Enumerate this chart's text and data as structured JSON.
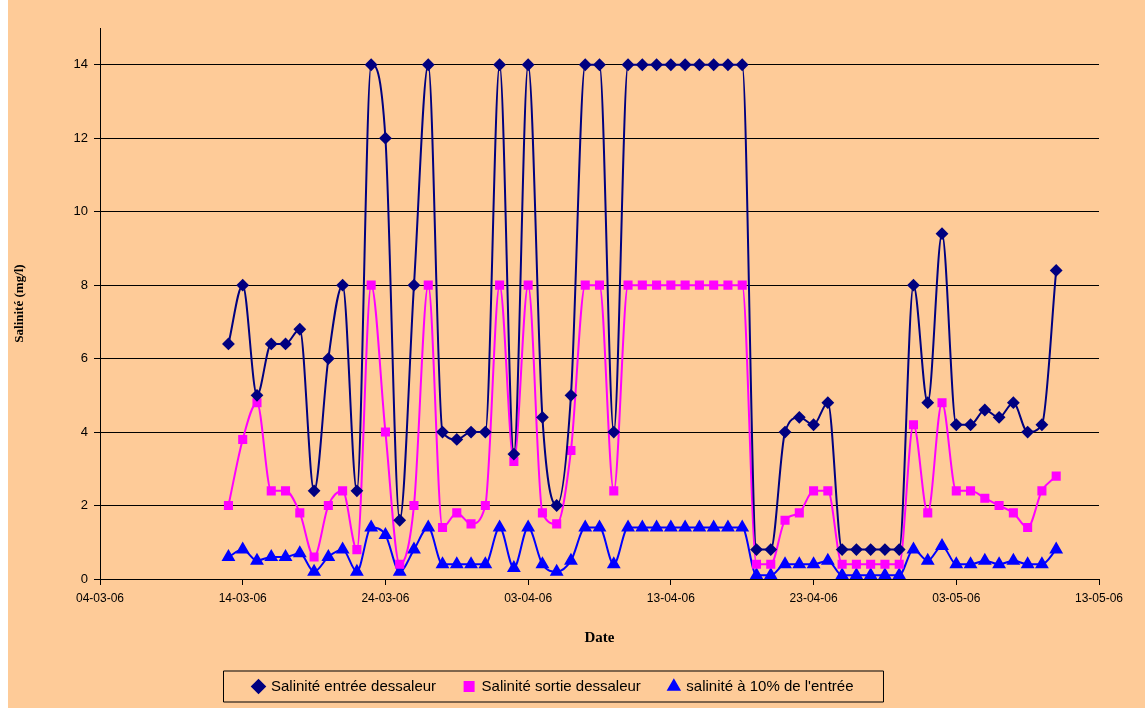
{
  "chart_data": {
    "type": "line",
    "xlabel": "Date",
    "ylabel": "Salinité (mg/l)",
    "x": [
      "--03-13",
      "--03-14",
      "--03-15",
      "--03-16",
      "--03-17",
      "--03-18",
      "--03-19",
      "--03-20",
      "--03-21",
      "--03-22",
      "--03-23",
      "--03-24",
      "--03-25",
      "--03-26",
      "--03-27",
      "--03-28",
      "--03-29",
      "--03-30",
      "--03-31",
      "--04-01",
      "--04-02",
      "--04-03",
      "--04-04",
      "--04-05",
      "--04-06",
      "--04-07",
      "--04-08",
      "--04-09",
      "--04-10",
      "--04-11",
      "--04-12",
      "--04-13",
      "--04-14",
      "--04-15",
      "--04-16",
      "--04-17",
      "--04-18",
      "--04-19",
      "--04-20",
      "--04-21",
      "--04-22",
      "--04-23",
      "--04-24",
      "--04-25",
      "--04-26",
      "--04-27",
      "--04-28",
      "--04-29",
      "--04-30",
      "--05-01",
      "--05-02",
      "--05-03",
      "--05-04",
      "--05-05",
      "--05-06",
      "--05-07",
      "--05-08",
      "--05-09",
      "--05-10"
    ],
    "series": [
      {
        "name": "Salinité entrée dessaleur",
        "color": "#000080",
        "marker": "diamond",
        "values": [
          6.4,
          8,
          5,
          6.4,
          6.4,
          6.8,
          2.4,
          6,
          8,
          2.4,
          14,
          12,
          1.6,
          8,
          14,
          4,
          3.8,
          4,
          4,
          14,
          3.4,
          14,
          4.4,
          2,
          5,
          14,
          14,
          4,
          14,
          14,
          14,
          14,
          14,
          14,
          14,
          14,
          14,
          0.8,
          0.8,
          4,
          4.4,
          4.2,
          4.8,
          0.8,
          0.8,
          0.8,
          0.8,
          0.8,
          8,
          4.8,
          9.4,
          4.2,
          4.2,
          4.6,
          4.4,
          4.8,
          4,
          4.2,
          8.4
        ]
      },
      {
        "name": "Salinité sortie dessaleur",
        "color": "#ff00ff",
        "marker": "square",
        "values": [
          2,
          3.8,
          4.8,
          2.4,
          2.4,
          1.8,
          0.6,
          2,
          2.4,
          0.8,
          8,
          4,
          0.4,
          2,
          8,
          1.4,
          1.8,
          1.5,
          2,
          8,
          3.2,
          8,
          1.8,
          1.5,
          3.5,
          8,
          8,
          2.4,
          8,
          8,
          8,
          8,
          8,
          8,
          8,
          8,
          8,
          0.4,
          0.4,
          1.6,
          1.8,
          2.4,
          2.4,
          0.4,
          0.4,
          0.4,
          0.4,
          0.4,
          4.2,
          1.8,
          4.8,
          2.4,
          2.4,
          2.2,
          2,
          1.8,
          1.4,
          2.4,
          2.8
        ]
      },
      {
        "name": "salinité à 10% de l'entrée",
        "color": "#0000ff",
        "marker": "triangle",
        "values": [
          0.6,
          0.8,
          0.5,
          0.6,
          0.6,
          0.7,
          0.2,
          0.6,
          0.8,
          0.2,
          1.4,
          1.2,
          0.2,
          0.8,
          1.4,
          0.4,
          0.4,
          0.4,
          0.4,
          1.4,
          0.3,
          1.4,
          0.4,
          0.2,
          0.5,
          1.4,
          1.4,
          0.4,
          1.4,
          1.4,
          1.4,
          1.4,
          1.4,
          1.4,
          1.4,
          1.4,
          1.4,
          0.1,
          0.1,
          0.4,
          0.4,
          0.4,
          0.5,
          0.1,
          0.1,
          0.1,
          0.1,
          0.1,
          0.8,
          0.5,
          0.9,
          0.4,
          0.4,
          0.5,
          0.4,
          0.5,
          0.4,
          0.4,
          0.8
        ]
      }
    ],
    "xlim": [
      "--03-04",
      "--05-13"
    ],
    "xticks": [
      {
        "value": "--03-04",
        "label": "04-03-06"
      },
      {
        "value": "--03-14",
        "label": "14-03-06"
      },
      {
        "value": "--03-24",
        "label": "24-03-06"
      },
      {
        "value": "--04-03",
        "label": "03-04-06"
      },
      {
        "value": "--04-13",
        "label": "13-04-06"
      },
      {
        "value": "--04-23",
        "label": "23-04-06"
      },
      {
        "value": "--05-03",
        "label": "03-05-06"
      },
      {
        "value": "--05-13",
        "label": "13-05-06"
      }
    ],
    "ylim": [
      0,
      15
    ],
    "yticks": [
      0,
      2,
      4,
      6,
      8,
      10,
      12,
      14
    ],
    "grid": "y",
    "legend": "bottom",
    "line_style": "solid"
  }
}
